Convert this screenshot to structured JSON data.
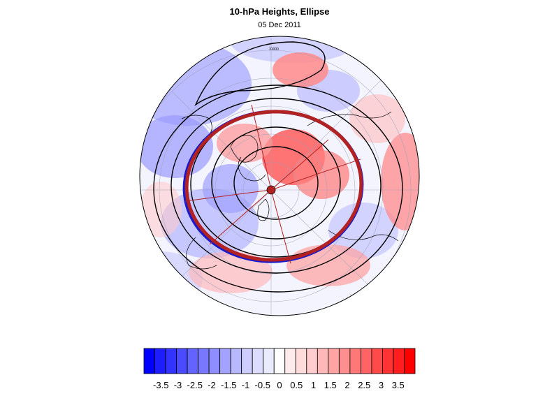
{
  "title": "10-hPa Heights, Ellipse",
  "date": "05 Dec 2011",
  "map": {
    "projection": "north polar stereographic",
    "field": "10-hPa height anomaly",
    "overlay": "ellipse fit",
    "contour_label": "31000"
  },
  "colorbar": {
    "labels": [
      "-3.5",
      "-3",
      "-2.5",
      "-2",
      "-1.5",
      "-1",
      "-0.5",
      "0",
      "0.5",
      "1",
      "1.5",
      "2",
      "2.5",
      "3",
      "3.5"
    ],
    "min": -4,
    "max": 4,
    "colors": [
      "#0000ff",
      "#1d1dff",
      "#3333ff",
      "#4a4aff",
      "#6363ff",
      "#7878ff",
      "#8e8eff",
      "#a3a3ff",
      "#b8b8ff",
      "#cdcdff",
      "#dcdcff",
      "#ebebff",
      "#ffffff",
      "#ffebeb",
      "#ffdcdc",
      "#ffcdcd",
      "#ffb8b8",
      "#ffa3a3",
      "#ff8e8e",
      "#ff7878",
      "#ff6363",
      "#ff4a4a",
      "#ff3333",
      "#ff1d1d",
      "#ff0000"
    ]
  },
  "colors": {
    "ellipse_red": "#b22222",
    "ellipse_blue": "#1a1acc",
    "contour": "#000000"
  }
}
